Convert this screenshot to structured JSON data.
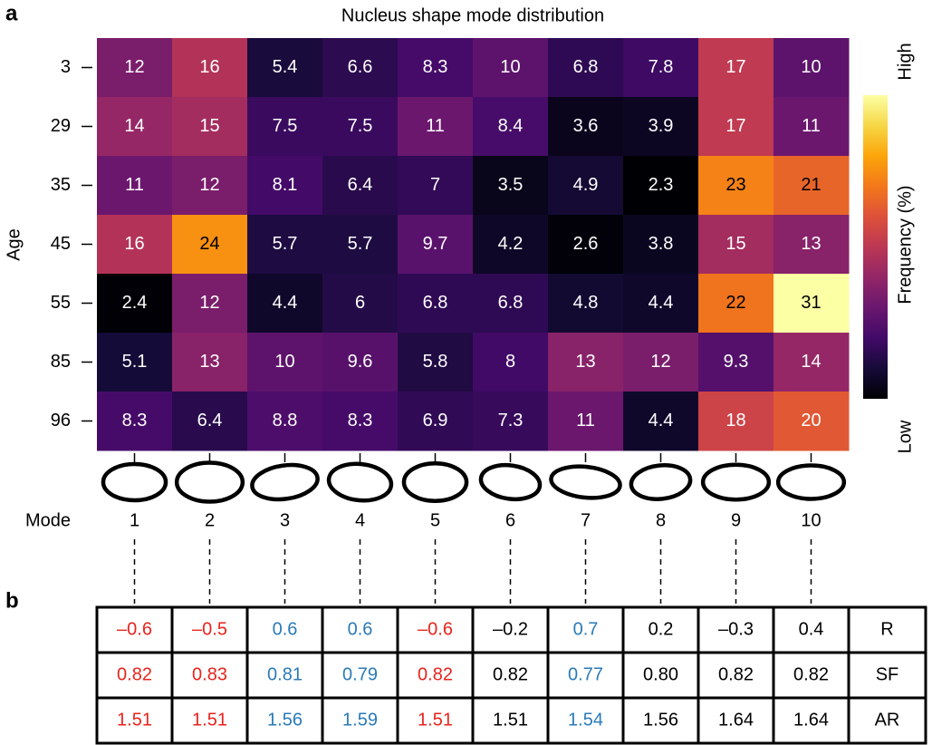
{
  "panel_labels": [
    "a",
    "b"
  ],
  "chart_data": {
    "type": "heatmap",
    "title": "Nucleus shape mode distribution",
    "x_label": "Mode",
    "y_label": "Age",
    "categories": [
      "1",
      "2",
      "3",
      "4",
      "5",
      "6",
      "7",
      "8",
      "9",
      "10"
    ],
    "rows": [
      "3",
      "29",
      "35",
      "45",
      "55",
      "85",
      "96"
    ],
    "values": [
      [
        12,
        16,
        5.4,
        6.6,
        8.3,
        10,
        6.8,
        7.8,
        17,
        10
      ],
      [
        14,
        15,
        7.5,
        7.5,
        11,
        8.4,
        3.6,
        3.9,
        17,
        11
      ],
      [
        11,
        12,
        8.1,
        6.4,
        7,
        3.5,
        4.9,
        2.3,
        23,
        21
      ],
      [
        16,
        24,
        5.7,
        5.7,
        9.7,
        4.2,
        2.6,
        3.8,
        15,
        13
      ],
      [
        2.4,
        12,
        4.4,
        6,
        6.8,
        6.8,
        4.8,
        4.4,
        22,
        31
      ],
      [
        5.1,
        13,
        10,
        9.6,
        5.8,
        8,
        13,
        12,
        9.3,
        14
      ],
      [
        8.3,
        6.4,
        8.8,
        8.3,
        6.9,
        7.3,
        11,
        4.4,
        18,
        20
      ]
    ],
    "colormap": "inferno",
    "clim": [
      2.3,
      31
    ],
    "colorbar_label": "Frequency (%)",
    "colorbar_high": "High",
    "colorbar_low": "Low"
  },
  "table": {
    "column_colors": [
      "#e8241c",
      "#e8241c",
      "#2a7ab9",
      "#2a7ab9",
      "#e8241c",
      "#000000",
      "#2a7ab9",
      "#000000",
      "#000000",
      "#000000",
      "#000000"
    ],
    "rows": [
      [
        "–0.6",
        "–0.5",
        "0.6",
        "0.6",
        "–0.6",
        "–0.2",
        "0.7",
        "0.2",
        "–0.3",
        "0.4",
        "R"
      ],
      [
        "0.82",
        "0.83",
        "0.81",
        "0.79",
        "0.82",
        "0.82",
        "0.77",
        "0.80",
        "0.82",
        "0.82",
        "SF"
      ],
      [
        "1.51",
        "1.51",
        "1.56",
        "1.59",
        "1.51",
        "1.51",
        "1.54",
        "1.56",
        "1.64",
        "1.64",
        "AR"
      ]
    ]
  }
}
